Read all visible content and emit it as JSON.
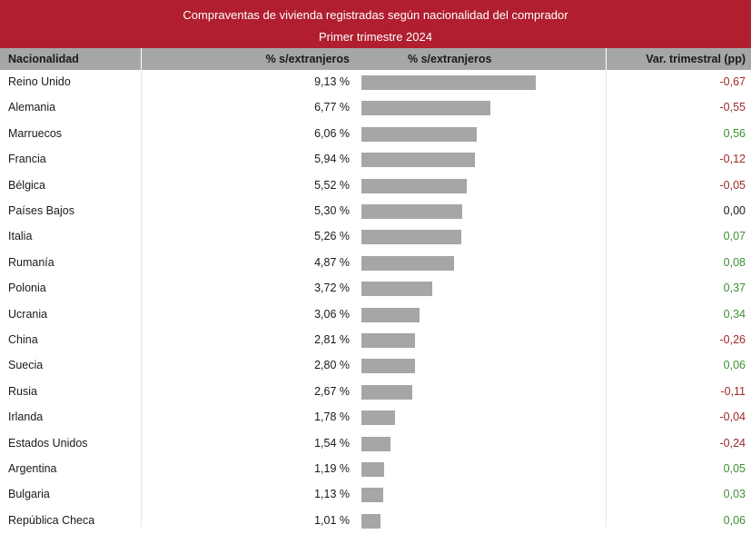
{
  "title": {
    "line1": "Compraventas de vivienda registradas según nacionalidad del comprador",
    "line2": "Primer trimestre 2024"
  },
  "headers": {
    "nationality": "Nacionalidad",
    "pct": "% s/extranjeros",
    "bar": "% s/extranjeros",
    "var": "Var. trimestral (pp)"
  },
  "colors": {
    "title_bg": "#b01e2f",
    "header_bg": "#a6a6a6",
    "bar": "#a6a6a6",
    "negative": "#a0282c",
    "positive": "#3f8f36",
    "zero": "#1a1a1a"
  },
  "chart_data": {
    "type": "table",
    "bar_max": 10,
    "rows": [
      {
        "name": "Reino Unido",
        "value": 9.13,
        "pct_label": "9,13 %",
        "var": -0.67,
        "var_label": "-0,67"
      },
      {
        "name": "Alemania",
        "value": 6.77,
        "pct_label": "6,77 %",
        "var": -0.55,
        "var_label": "-0,55"
      },
      {
        "name": "Marruecos",
        "value": 6.06,
        "pct_label": "6,06 %",
        "var": 0.56,
        "var_label": "0,56"
      },
      {
        "name": "Francia",
        "value": 5.94,
        "pct_label": "5,94 %",
        "var": -0.12,
        "var_label": "-0,12"
      },
      {
        "name": "Bélgica",
        "value": 5.52,
        "pct_label": "5,52 %",
        "var": -0.05,
        "var_label": "-0,05"
      },
      {
        "name": "Países Bajos",
        "value": 5.3,
        "pct_label": "5,30 %",
        "var": 0.0,
        "var_label": "0,00"
      },
      {
        "name": "Italia",
        "value": 5.26,
        "pct_label": "5,26 %",
        "var": 0.07,
        "var_label": "0,07"
      },
      {
        "name": "Rumanía",
        "value": 4.87,
        "pct_label": "4,87 %",
        "var": 0.08,
        "var_label": "0,08"
      },
      {
        "name": "Polonia",
        "value": 3.72,
        "pct_label": "3,72 %",
        "var": 0.37,
        "var_label": "0,37"
      },
      {
        "name": "Ucrania",
        "value": 3.06,
        "pct_label": "3,06 %",
        "var": 0.34,
        "var_label": "0,34"
      },
      {
        "name": "China",
        "value": 2.81,
        "pct_label": "2,81 %",
        "var": -0.26,
        "var_label": "-0,26"
      },
      {
        "name": "Suecia",
        "value": 2.8,
        "pct_label": "2,80 %",
        "var": 0.06,
        "var_label": "0,06"
      },
      {
        "name": "Rusia",
        "value": 2.67,
        "pct_label": "2,67 %",
        "var": -0.11,
        "var_label": "-0,11"
      },
      {
        "name": "Irlanda",
        "value": 1.78,
        "pct_label": "1,78 %",
        "var": -0.04,
        "var_label": "-0,04"
      },
      {
        "name": "Estados Unidos",
        "value": 1.54,
        "pct_label": "1,54 %",
        "var": -0.24,
        "var_label": "-0,24"
      },
      {
        "name": "Argentina",
        "value": 1.19,
        "pct_label": "1,19 %",
        "var": 0.05,
        "var_label": "0,05"
      },
      {
        "name": "Bulgaria",
        "value": 1.13,
        "pct_label": "1,13 %",
        "var": 0.03,
        "var_label": "0,03"
      },
      {
        "name": "República Checa",
        "value": 1.01,
        "pct_label": "1,01 %",
        "var": 0.06,
        "var_label": "0,06"
      }
    ]
  }
}
